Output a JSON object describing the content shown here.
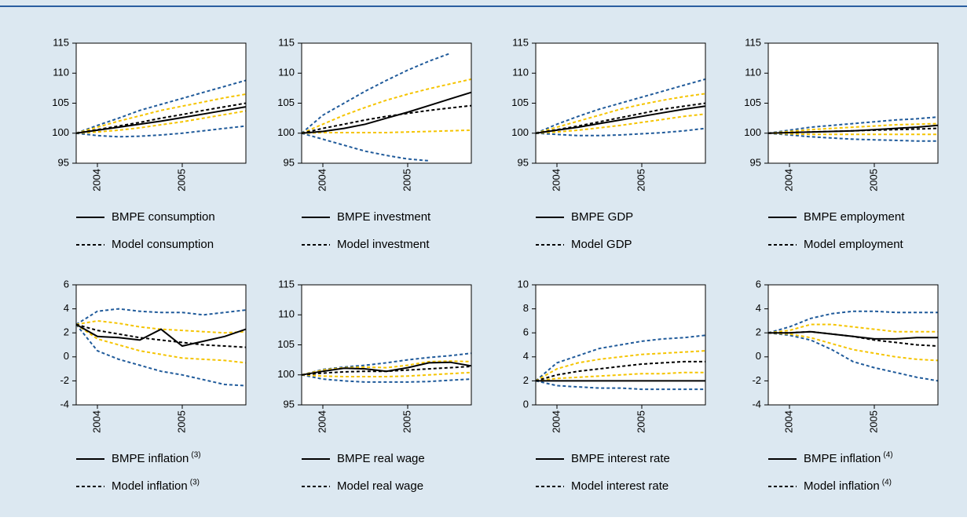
{
  "chart_data": [
    {
      "type": "line",
      "xlim": [
        2003.75,
        2005.75
      ],
      "xticks": [
        2004,
        2005
      ],
      "ylim": [
        95,
        115
      ],
      "yticks": [
        95,
        100,
        105,
        110,
        115
      ],
      "x": [
        2003.75,
        2004,
        2004.25,
        2004.5,
        2004.75,
        2005,
        2005.25,
        2005.5,
        2005.75
      ],
      "series": [
        {
          "name": "BMPE consumption",
          "color": "#000000",
          "dash": false,
          "values": [
            100,
            100.5,
            101,
            101.5,
            102,
            102.6,
            103.2,
            103.8,
            104.4
          ]
        },
        {
          "name": "Model consumption",
          "color": "#000000",
          "dash": true,
          "values": [
            100,
            100.6,
            101.2,
            101.8,
            102.5,
            103.1,
            103.8,
            104.4,
            105
          ]
        },
        {
          "color": "#f5c400",
          "dash": true,
          "values": [
            100,
            101,
            102,
            102.9,
            103.8,
            104.5,
            105.2,
            105.9,
            106.5
          ]
        },
        {
          "color": "#f5c400",
          "dash": true,
          "values": [
            100,
            100.2,
            100.5,
            100.9,
            101.4,
            101.9,
            102.5,
            103.1,
            103.7
          ]
        },
        {
          "color": "#1f5a9a",
          "dash": true,
          "values": [
            100,
            101.3,
            102.5,
            103.8,
            104.8,
            105.8,
            106.8,
            107.8,
            108.8
          ]
        },
        {
          "color": "#1f5a9a",
          "dash": true,
          "values": [
            100,
            99.6,
            99.4,
            99.5,
            99.7,
            100,
            100.4,
            100.8,
            101.2
          ]
        }
      ]
    },
    {
      "type": "line",
      "xlim": [
        2003.75,
        2005.75
      ],
      "xticks": [
        2004,
        2005
      ],
      "ylim": [
        95,
        115
      ],
      "yticks": [
        95,
        100,
        105,
        110,
        115
      ],
      "x": [
        2003.75,
        2004,
        2004.25,
        2004.5,
        2004.75,
        2005,
        2005.25,
        2005.5,
        2005.75
      ],
      "series": [
        {
          "name": "BMPE investment",
          "color": "#000000",
          "dash": false,
          "values": [
            100,
            100.3,
            100.8,
            101.5,
            102.5,
            103.5,
            104.6,
            105.7,
            106.8
          ]
        },
        {
          "name": "Model investment",
          "color": "#000000",
          "dash": true,
          "values": [
            100,
            100.8,
            101.5,
            102.2,
            102.8,
            103.3,
            103.8,
            104.2,
            104.6
          ]
        },
        {
          "color": "#f5c400",
          "dash": true,
          "values": [
            100,
            101.5,
            103,
            104.3,
            105.5,
            106.5,
            107.4,
            108.2,
            109
          ]
        },
        {
          "color": "#f5c400",
          "dash": true,
          "values": [
            100,
            100.1,
            100.1,
            100.1,
            100.1,
            100.2,
            100.3,
            100.4,
            100.5
          ]
        },
        {
          "color": "#1f5a9a",
          "dash": true,
          "values": [
            100,
            103,
            105,
            107,
            108.8,
            110.5,
            112,
            113.3,
            null
          ]
        },
        {
          "color": "#1f5a9a",
          "dash": true,
          "values": [
            100,
            99,
            98,
            97,
            96.3,
            95.7,
            95.4,
            null,
            null
          ]
        }
      ]
    },
    {
      "type": "line",
      "xlim": [
        2003.75,
        2005.75
      ],
      "xticks": [
        2004,
        2005
      ],
      "ylim": [
        95,
        115
      ],
      "yticks": [
        95,
        100,
        105,
        110,
        115
      ],
      "x": [
        2003.75,
        2004,
        2004.25,
        2004.5,
        2004.75,
        2005,
        2005.25,
        2005.5,
        2005.75
      ],
      "series": [
        {
          "name": "BMPE GDP",
          "color": "#000000",
          "dash": false,
          "values": [
            100,
            100.5,
            101,
            101.6,
            102.2,
            102.8,
            103.4,
            104,
            104.5
          ]
        },
        {
          "name": "Model GDP",
          "color": "#000000",
          "dash": true,
          "values": [
            100,
            100.6,
            101.2,
            101.9,
            102.6,
            103.3,
            104,
            104.5,
            105
          ]
        },
        {
          "color": "#f5c400",
          "dash": true,
          "values": [
            100,
            101,
            102,
            103,
            104,
            104.8,
            105.5,
            106.1,
            106.6
          ]
        },
        {
          "color": "#f5c400",
          "dash": true,
          "values": [
            100,
            100.2,
            100.5,
            100.9,
            101.3,
            101.8,
            102.3,
            102.8,
            103.2
          ]
        },
        {
          "color": "#1f5a9a",
          "dash": true,
          "values": [
            100,
            101.5,
            102.8,
            104,
            105,
            106,
            107,
            108,
            109
          ]
        },
        {
          "color": "#1f5a9a",
          "dash": true,
          "values": [
            100,
            99.8,
            99.6,
            99.6,
            99.7,
            99.9,
            100.1,
            100.4,
            100.8
          ]
        }
      ]
    },
    {
      "type": "line",
      "xlim": [
        2003.75,
        2005.75
      ],
      "xticks": [
        2004,
        2005
      ],
      "ylim": [
        95,
        115
      ],
      "yticks": [
        95,
        100,
        105,
        110,
        115
      ],
      "x": [
        2003.75,
        2004,
        2004.25,
        2004.5,
        2004.75,
        2005,
        2005.25,
        2005.5,
        2005.75
      ],
      "series": [
        {
          "name": "BMPE employment",
          "color": "#000000",
          "dash": false,
          "values": [
            100,
            100.1,
            100.2,
            100.3,
            100.4,
            100.6,
            100.8,
            101,
            101.3
          ]
        },
        {
          "name": "Model employment",
          "color": "#000000",
          "dash": true,
          "values": [
            100,
            100.1,
            100.2,
            100.3,
            100.4,
            100.5,
            100.6,
            100.7,
            100.8
          ]
        },
        {
          "color": "#f5c400",
          "dash": true,
          "values": [
            100,
            100.3,
            100.6,
            100.8,
            101,
            101.2,
            101.4,
            101.5,
            101.6
          ]
        },
        {
          "color": "#f5c400",
          "dash": true,
          "values": [
            100,
            99.9,
            99.8,
            99.8,
            99.8,
            99.8,
            99.8,
            99.8,
            99.8
          ]
        },
        {
          "color": "#1f5a9a",
          "dash": true,
          "values": [
            100,
            100.5,
            101,
            101.3,
            101.6,
            101.9,
            102.2,
            102.4,
            102.7
          ]
        },
        {
          "color": "#1f5a9a",
          "dash": true,
          "values": [
            100,
            99.7,
            99.4,
            99.2,
            99,
            98.9,
            98.8,
            98.7,
            98.7
          ]
        }
      ]
    },
    {
      "type": "line",
      "xlim": [
        2003.75,
        2005.75
      ],
      "xticks": [
        2004,
        2005
      ],
      "ylim": [
        -4,
        6
      ],
      "yticks": [
        -4,
        -2,
        0,
        2,
        4,
        6
      ],
      "x": [
        2003.75,
        2004,
        2004.25,
        2004.5,
        2004.75,
        2005,
        2005.25,
        2005.5,
        2005.75
      ],
      "series": [
        {
          "name": "BMPE inflation",
          "superscript": "(3)",
          "color": "#000000",
          "dash": false,
          "values": [
            2.7,
            1.7,
            1.6,
            1.4,
            2.3,
            0.9,
            1.3,
            1.7,
            2.3
          ]
        },
        {
          "name": "Model inflation",
          "superscript": "(3)",
          "color": "#000000",
          "dash": true,
          "values": [
            2.7,
            2.2,
            1.9,
            1.6,
            1.4,
            1.2,
            1,
            0.9,
            0.8
          ]
        },
        {
          "color": "#f5c400",
          "dash": true,
          "values": [
            2.7,
            3,
            2.8,
            2.5,
            2.3,
            2.2,
            2.1,
            2,
            2.1
          ]
        },
        {
          "color": "#f5c400",
          "dash": true,
          "values": [
            2.7,
            1.5,
            1,
            0.5,
            0.2,
            -0.1,
            -0.2,
            -0.3,
            -0.5
          ]
        },
        {
          "color": "#1f5a9a",
          "dash": true,
          "values": [
            2.7,
            3.8,
            4,
            3.8,
            3.7,
            3.7,
            3.5,
            3.7,
            3.9
          ]
        },
        {
          "color": "#1f5a9a",
          "dash": true,
          "values": [
            2.7,
            0.5,
            -0.2,
            -0.7,
            -1.2,
            -1.5,
            -1.9,
            -2.3,
            -2.4
          ]
        }
      ]
    },
    {
      "type": "line",
      "xlim": [
        2003.75,
        2005.75
      ],
      "xticks": [
        2004,
        2005
      ],
      "ylim": [
        95,
        115
      ],
      "yticks": [
        95,
        100,
        105,
        110,
        115
      ],
      "x": [
        2003.75,
        2004,
        2004.25,
        2004.5,
        2004.75,
        2005,
        2005.25,
        2005.5,
        2005.75
      ],
      "series": [
        {
          "name": "BMPE real wage",
          "color": "#000000",
          "dash": false,
          "values": [
            100,
            100.6,
            101.1,
            101,
            100.6,
            101.2,
            102,
            102.1,
            101.5
          ]
        },
        {
          "name": "Model real wage",
          "color": "#000000",
          "dash": true,
          "values": [
            100,
            100.3,
            100.5,
            100.6,
            100.6,
            100.8,
            101,
            101.2,
            101.4
          ]
        },
        {
          "color": "#f5c400",
          "dash": true,
          "values": [
            100,
            100.8,
            101.2,
            101.3,
            101.2,
            101.6,
            102.2,
            102.3,
            102.2
          ]
        },
        {
          "color": "#f5c400",
          "dash": true,
          "values": [
            100,
            99.8,
            99.7,
            99.7,
            99.7,
            99.8,
            100,
            100.2,
            100.4
          ]
        },
        {
          "color": "#1f5a9a",
          "dash": true,
          "values": [
            100,
            100.9,
            101.3,
            101.6,
            102,
            102.5,
            102.9,
            103.2,
            103.6
          ]
        },
        {
          "color": "#1f5a9a",
          "dash": true,
          "values": [
            100,
            99.3,
            99,
            98.8,
            98.8,
            98.8,
            98.9,
            99.1,
            99.3
          ]
        }
      ]
    },
    {
      "type": "line",
      "xlim": [
        2003.75,
        2005.75
      ],
      "xticks": [
        2004,
        2005
      ],
      "ylim": [
        0,
        10
      ],
      "yticks": [
        0,
        2,
        4,
        6,
        8,
        10
      ],
      "x": [
        2003.75,
        2004,
        2004.25,
        2004.5,
        2004.75,
        2005,
        2005.25,
        2005.5,
        2005.75
      ],
      "series": [
        {
          "name": "BMPE interest rate",
          "color": "#000000",
          "dash": false,
          "values": [
            2,
            2,
            2,
            2,
            2,
            2,
            2,
            2,
            2
          ]
        },
        {
          "name": "Model interest rate",
          "color": "#000000",
          "dash": true,
          "values": [
            2,
            2.5,
            2.8,
            3,
            3.2,
            3.4,
            3.5,
            3.6,
            3.6
          ]
        },
        {
          "color": "#f5c400",
          "dash": true,
          "values": [
            2,
            3,
            3.5,
            3.8,
            4,
            4.2,
            4.3,
            4.4,
            4.5
          ]
        },
        {
          "color": "#f5c400",
          "dash": true,
          "values": [
            2,
            2.2,
            2.3,
            2.4,
            2.5,
            2.6,
            2.6,
            2.7,
            2.7
          ]
        },
        {
          "color": "#1f5a9a",
          "dash": true,
          "values": [
            2,
            3.5,
            4.1,
            4.7,
            5,
            5.3,
            5.5,
            5.6,
            5.8
          ]
        },
        {
          "color": "#1f5a9a",
          "dash": true,
          "values": [
            2,
            1.6,
            1.5,
            1.4,
            1.4,
            1.3,
            1.3,
            1.3,
            1.3
          ]
        }
      ]
    },
    {
      "type": "line",
      "xlim": [
        2003.75,
        2005.75
      ],
      "xticks": [
        2004,
        2005
      ],
      "ylim": [
        -4,
        6
      ],
      "yticks": [
        -4,
        -2,
        0,
        2,
        4,
        6
      ],
      "x": [
        2003.75,
        2004,
        2004.25,
        2004.5,
        2004.75,
        2005,
        2005.25,
        2005.5,
        2005.75
      ],
      "series": [
        {
          "name": "BMPE inflation",
          "superscript": "(4)",
          "color": "#000000",
          "dash": false,
          "values": [
            2,
            2,
            2.1,
            1.9,
            1.7,
            1.5,
            1.5,
            1.6,
            1.6
          ]
        },
        {
          "name": "Model inflation",
          "superscript": "(4)",
          "color": "#000000",
          "dash": true,
          "values": [
            2,
            2,
            2.1,
            1.9,
            1.7,
            1.4,
            1.2,
            1,
            0.9
          ]
        },
        {
          "color": "#f5c400",
          "dash": true,
          "values": [
            2,
            2.2,
            2.7,
            2.7,
            2.5,
            2.3,
            2.1,
            2.1,
            2.1
          ]
        },
        {
          "color": "#f5c400",
          "dash": true,
          "values": [
            2,
            1.9,
            1.6,
            1.1,
            0.6,
            0.3,
            0,
            -0.2,
            -0.3
          ]
        },
        {
          "color": "#1f5a9a",
          "dash": true,
          "values": [
            2,
            2.5,
            3.2,
            3.6,
            3.8,
            3.8,
            3.7,
            3.7,
            3.7
          ]
        },
        {
          "color": "#1f5a9a",
          "dash": true,
          "values": [
            2,
            1.8,
            1.4,
            0.6,
            -0.4,
            -0.9,
            -1.3,
            -1.7,
            -2
          ]
        }
      ]
    }
  ]
}
